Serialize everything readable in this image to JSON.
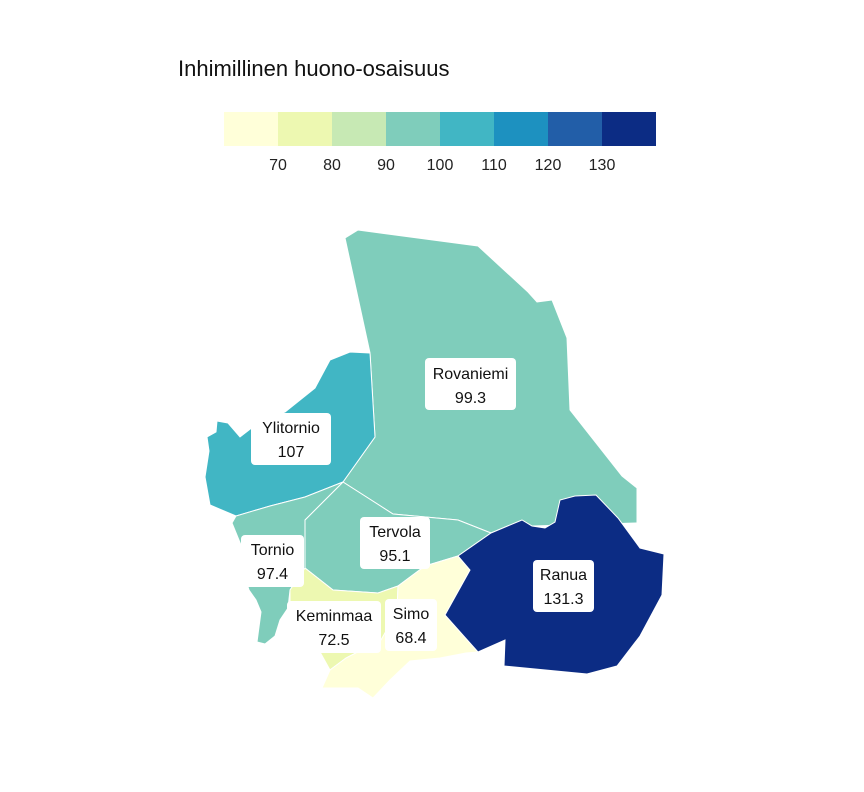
{
  "title": "Inhimillinen huono-osaisuus",
  "legend": {
    "colors": [
      "#ffffd9",
      "#edf8b1",
      "#c7e9b4",
      "#7fcdbb",
      "#41b6c4",
      "#1d91c0",
      "#225ea8",
      "#0c2c84"
    ],
    "ticks": [
      "70",
      "80",
      "90",
      "100",
      "110",
      "120",
      "130"
    ]
  },
  "regions": [
    {
      "id": "rovaniemi",
      "name": "Rovaniemi",
      "value": "99.3",
      "color": "#7fcdbb"
    },
    {
      "id": "ylitornio",
      "name": "Ylitornio",
      "value": "107",
      "color": "#41b6c4"
    },
    {
      "id": "tervola",
      "name": "Tervola",
      "value": "95.1",
      "color": "#7fcdbb"
    },
    {
      "id": "tornio",
      "name": "Tornio",
      "value": "97.4",
      "color": "#7fcdbb"
    },
    {
      "id": "keminmaa",
      "name": "Keminmaa",
      "value": "72.5",
      "color": "#edf8b1"
    },
    {
      "id": "simo",
      "name": "Simo",
      "value": "68.4",
      "color": "#ffffd9"
    },
    {
      "id": "ranua",
      "name": "Ranua",
      "value": "131.3",
      "color": "#0c2c84"
    }
  ]
}
